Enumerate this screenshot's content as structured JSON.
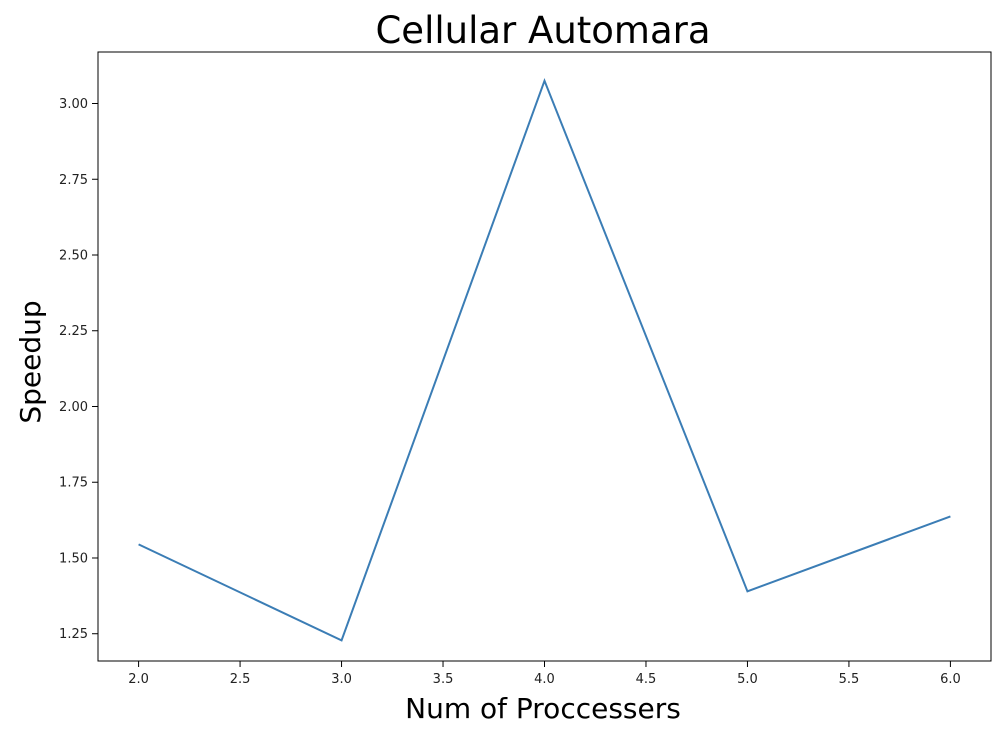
{
  "chart_data": {
    "type": "line",
    "title": "Cellular Automara",
    "xlabel": "Num of Proccessers",
    "ylabel": "Speedup",
    "x": [
      2.0,
      3.0,
      4.0,
      5.0,
      6.0
    ],
    "series": [
      {
        "values": [
          1.545,
          1.228,
          3.075,
          1.39,
          1.637
        ],
        "color": "#3b7db5"
      }
    ],
    "xlim": [
      1.8,
      6.2
    ],
    "ylim": [
      1.16,
      3.17
    ],
    "xticks": [
      2.0,
      2.5,
      3.0,
      3.5,
      4.0,
      4.5,
      5.0,
      5.5,
      6.0
    ],
    "xtick_labels": [
      "2.0",
      "2.5",
      "3.0",
      "3.5",
      "4.0",
      "4.5",
      "5.0",
      "5.5",
      "6.0"
    ],
    "yticks": [
      1.25,
      1.5,
      1.75,
      2.0,
      2.25,
      2.5,
      2.75,
      3.0
    ],
    "ytick_labels": [
      "1.25",
      "1.50",
      "1.75",
      "2.00",
      "2.25",
      "2.50",
      "2.75",
      "3.00"
    ],
    "grid": false,
    "legend": "none"
  }
}
